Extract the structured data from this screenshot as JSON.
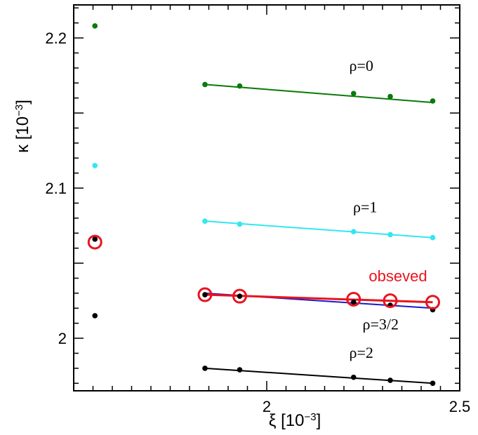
{
  "chart_data": {
    "type": "scatter",
    "xlabel": "ξ  [10",
    "xlabel_exp": "−3",
    "xlabel_close": "]",
    "ylabel": "κ  [10",
    "ylabel_exp": "−3",
    "ylabel_close": "]",
    "xlim": [
      1.5,
      2.5
    ],
    "ylim": [
      1.965,
      2.222
    ],
    "x_ticks": [
      {
        "value": 2.0,
        "label": "2"
      },
      {
        "value": 2.5,
        "label": "2.5"
      }
    ],
    "y_ticks": [
      {
        "value": 2.0,
        "label": "2"
      },
      {
        "value": 2.1,
        "label": "2.1"
      },
      {
        "value": 2.2,
        "label": "2.2"
      }
    ],
    "series": [
      {
        "name": "ρ=0",
        "color": "#0a7a0a",
        "label_at": [
          2.245,
          2.178
        ],
        "fit": [
          [
            1.84,
            2.169
          ],
          [
            2.43,
            2.157
          ]
        ],
        "points": [
          [
            1.555,
            2.208
          ],
          [
            1.84,
            2.169
          ],
          [
            1.93,
            2.168
          ],
          [
            2.225,
            2.163
          ],
          [
            2.32,
            2.161
          ],
          [
            2.43,
            2.158
          ]
        ]
      },
      {
        "name": "ρ=1",
        "color": "#33e6f2",
        "label_at": [
          2.255,
          2.084
        ],
        "fit": [
          [
            1.84,
            2.078
          ],
          [
            2.43,
            2.067
          ]
        ],
        "points": [
          [
            1.555,
            2.115
          ],
          [
            1.84,
            2.078
          ],
          [
            1.93,
            2.076
          ],
          [
            2.225,
            2.071
          ],
          [
            2.32,
            2.069
          ],
          [
            2.43,
            2.067
          ]
        ]
      },
      {
        "name": "ρ=3/2",
        "color": "#000000",
        "line_color": "#1a1acc",
        "label_at": [
          2.295,
          2.006
        ],
        "fit": [
          [
            1.84,
            2.03
          ],
          [
            2.43,
            2.02
          ]
        ],
        "points": [
          [
            1.555,
            2.066
          ],
          [
            1.84,
            2.029
          ],
          [
            1.93,
            2.028
          ],
          [
            2.225,
            2.024
          ],
          [
            2.32,
            2.022
          ],
          [
            2.43,
            2.019
          ]
        ]
      },
      {
        "name": "ρ=2",
        "color": "#000000",
        "label_at": [
          2.245,
          1.987
        ],
        "fit": [
          [
            1.84,
            1.98
          ],
          [
            2.43,
            1.97
          ]
        ],
        "points": [
          [
            1.555,
            2.015
          ],
          [
            1.84,
            1.98
          ],
          [
            1.93,
            1.979
          ],
          [
            2.225,
            1.974
          ],
          [
            2.32,
            1.972
          ],
          [
            2.43,
            1.97
          ]
        ]
      },
      {
        "name": "obseved",
        "color": "#e8141e",
        "label_at": [
          2.34,
          2.038
        ],
        "fit": [
          [
            1.84,
            2.029
          ],
          [
            2.43,
            2.024
          ]
        ],
        "points": [
          [
            1.555,
            2.064
          ],
          [
            1.84,
            2.029
          ],
          [
            1.93,
            2.028
          ],
          [
            2.225,
            2.026
          ],
          [
            2.32,
            2.025
          ],
          [
            2.43,
            2.024
          ]
        ]
      }
    ]
  }
}
